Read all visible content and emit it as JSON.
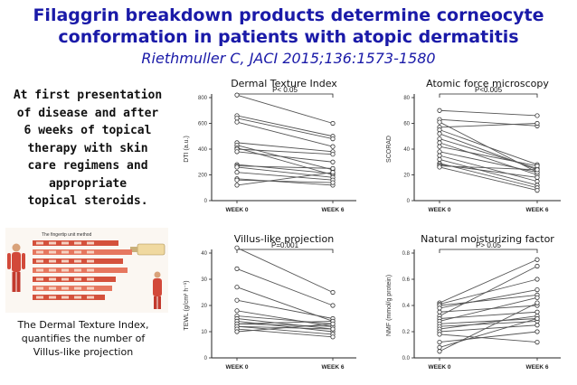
{
  "header": {
    "title_line1": "Filaggrin breakdown products determine corneocyte",
    "title_line2": "conformation in patients with atopic dermatitis",
    "citation": "Riethmuller C, JACI 2015;136:1573-1580"
  },
  "left_note": {
    "lines": [
      "At first presentation",
      "of disease and after",
      "6 weeks of topical",
      "therapy with skin",
      "care regimens and",
      "appropriate",
      "topical steroids."
    ]
  },
  "thumbnail": {
    "header_text": "The fingertip unit method",
    "rows": [
      "",
      "",
      "",
      "",
      "",
      "",
      ""
    ]
  },
  "caption": {
    "lines": [
      "The Dermal Texture Index,",
      "quantifies the number of",
      "Villus-like projection"
    ]
  },
  "colors": {
    "title": "#1a1aa8",
    "line": "#555555",
    "point_fill": "#ffffff"
  },
  "chart_data": [
    {
      "type": "line",
      "title": "Dermal Texture Index",
      "ylabel": "DTI (a.u.)",
      "categories": [
        "WEEK 0",
        "WEEK 6"
      ],
      "ylim": [
        0,
        800
      ],
      "yticks": [
        0,
        200,
        400,
        600,
        800
      ],
      "annotation": "P< 0.05",
      "pairs": [
        [
          820,
          600
        ],
        [
          660,
          500
        ],
        [
          640,
          480
        ],
        [
          610,
          420
        ],
        [
          450,
          380
        ],
        [
          430,
          240
        ],
        [
          410,
          200
        ],
        [
          400,
          360
        ],
        [
          380,
          300
        ],
        [
          280,
          210
        ],
        [
          270,
          250
        ],
        [
          260,
          180
        ],
        [
          220,
          160
        ],
        [
          170,
          120
        ],
        [
          160,
          140
        ],
        [
          120,
          220
        ]
      ]
    },
    {
      "type": "line",
      "title": "Atomic force microscopy",
      "ylabel": "SCORAD",
      "categories": [
        "WEEK 0",
        "WEEK 6"
      ],
      "ylim": [
        0,
        80
      ],
      "yticks": [
        0,
        20,
        40,
        60,
        80
      ],
      "annotation": "P<0.005",
      "pairs": [
        [
          70,
          66
        ],
        [
          63,
          58
        ],
        [
          61,
          22
        ],
        [
          57,
          60
        ],
        [
          55,
          28
        ],
        [
          52,
          24
        ],
        [
          48,
          25
        ],
        [
          45,
          20
        ],
        [
          42,
          27
        ],
        [
          38,
          22
        ],
        [
          35,
          15
        ],
        [
          32,
          12
        ],
        [
          29,
          10
        ],
        [
          28,
          18
        ],
        [
          27,
          24
        ],
        [
          26,
          8
        ]
      ]
    },
    {
      "type": "line",
      "title": "Villus-like projection",
      "ylabel": "TEWL (g/cm² h⁻¹)",
      "categories": [
        "WEEK 0",
        "WEEK 6"
      ],
      "ylim": [
        0,
        40
      ],
      "yticks": [
        0,
        10,
        20,
        30,
        40
      ],
      "annotation": "P=0.001",
      "pairs": [
        [
          42,
          25
        ],
        [
          34,
          20
        ],
        [
          27,
          14
        ],
        [
          22,
          15
        ],
        [
          18,
          12
        ],
        [
          16,
          13
        ],
        [
          15,
          11
        ],
        [
          14,
          10
        ],
        [
          13,
          14
        ],
        [
          13,
          12
        ],
        [
          12,
          9
        ],
        [
          12,
          11
        ],
        [
          11,
          8
        ],
        [
          10,
          13
        ]
      ]
    },
    {
      "type": "line",
      "title": "Natural moisturizing factor",
      "ylabel": "NMF (mmol/g protein)",
      "categories": [
        "WEEK 0",
        "WEEK 6"
      ],
      "ylim": [
        0,
        0.8
      ],
      "yticks": [
        0.0,
        0.2,
        0.4,
        0.6,
        0.8
      ],
      "annotation": "P> 0.05",
      "pairs": [
        [
          0.42,
          0.75
        ],
        [
          0.41,
          0.6
        ],
        [
          0.4,
          0.48
        ],
        [
          0.38,
          0.52
        ],
        [
          0.35,
          0.4
        ],
        [
          0.32,
          0.7
        ],
        [
          0.3,
          0.35
        ],
        [
          0.28,
          0.46
        ],
        [
          0.26,
          0.3
        ],
        [
          0.24,
          0.28
        ],
        [
          0.22,
          0.32
        ],
        [
          0.2,
          0.25
        ],
        [
          0.18,
          0.12
        ],
        [
          0.12,
          0.2
        ],
        [
          0.08,
          0.3
        ],
        [
          0.05,
          0.42
        ]
      ]
    }
  ]
}
